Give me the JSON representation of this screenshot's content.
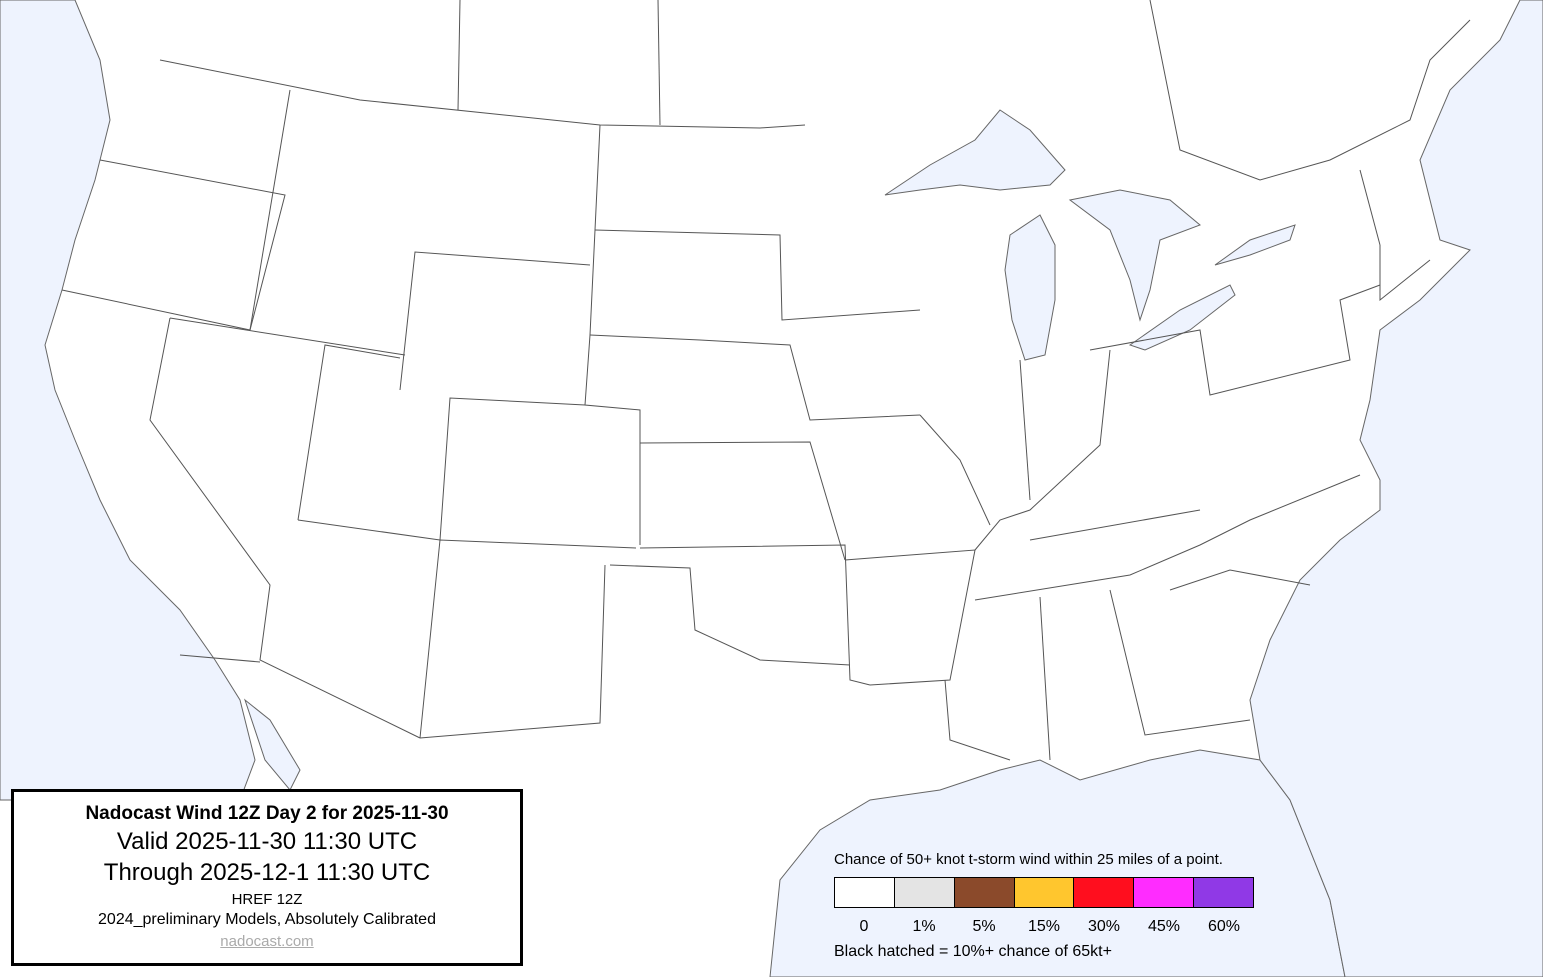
{
  "title_box": {
    "title": "Nadocast Wind 12Z Day 2 for 2025-11-30",
    "valid": "Valid 2025-11-30 11:30 UTC",
    "through": "Through 2025-12-1 11:30 UTC",
    "model": "HREF 12Z",
    "calibration": "2024_preliminary Models, Absolutely Calibrated",
    "link": "nadocast.com"
  },
  "legend": {
    "heading": "Chance of 50+ knot t-storm wind within 25 miles of a point.",
    "bins": [
      {
        "label": "0",
        "color": "#ffffff"
      },
      {
        "label": "1%",
        "color": "#e4e4e4"
      },
      {
        "label": "5%",
        "color": "#8b4a2b"
      },
      {
        "label": "15%",
        "color": "#ffc62e"
      },
      {
        "label": "30%",
        "color": "#ff0e1e"
      },
      {
        "label": "45%",
        "color": "#ff2cff"
      },
      {
        "label": "60%",
        "color": "#9039e6"
      }
    ],
    "hatch_note": "Black hatched = 10%+ chance of 65kt+"
  },
  "colors": {
    "water": "#eef3fe",
    "land": "#ffffff",
    "borders": "#555555"
  }
}
